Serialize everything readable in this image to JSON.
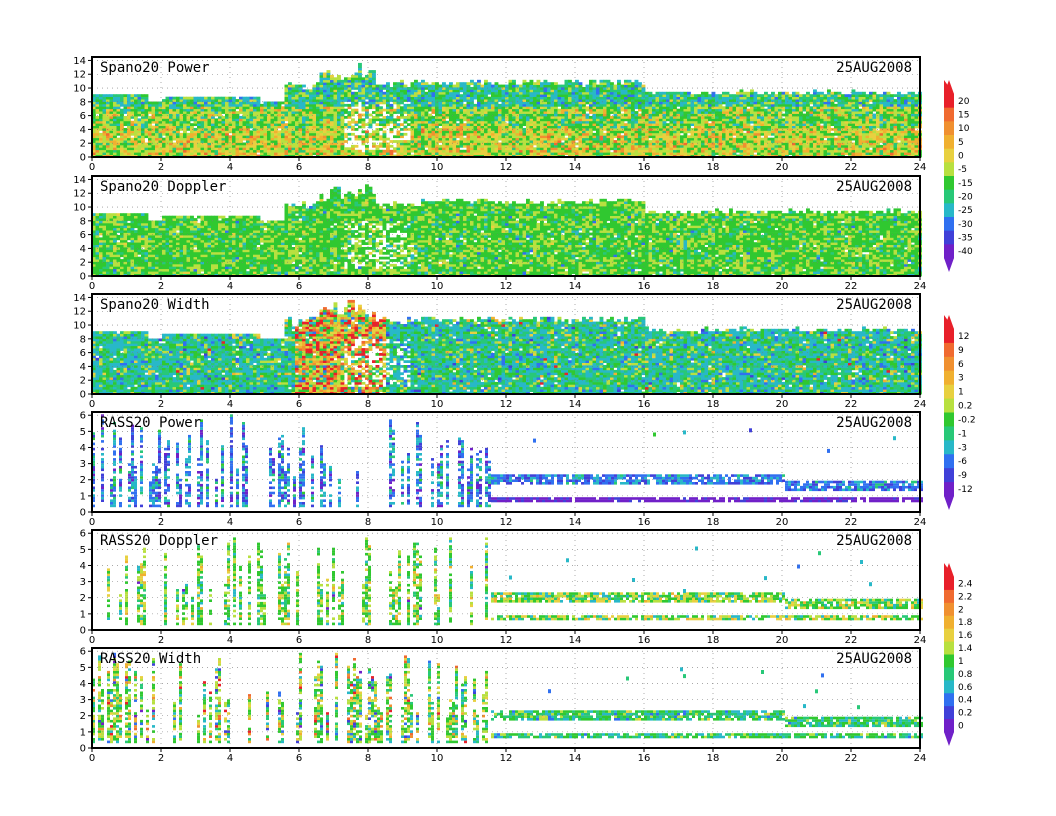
{
  "chart_data": [
    {
      "type": "heatmap",
      "title": "Spano20  Power",
      "date": "25AUG2008",
      "ylim": [
        0,
        14.5
      ],
      "yticks": [
        0,
        2,
        4,
        6,
        8,
        10,
        12,
        14
      ],
      "xticks": [
        0,
        2,
        4,
        6,
        8,
        10,
        12,
        14,
        16,
        18,
        20,
        22,
        24
      ],
      "colorbar": 0
    },
    {
      "type": "heatmap",
      "title": "Spano20  Doppler",
      "date": "25AUG2008",
      "ylim": [
        0,
        14.5
      ],
      "yticks": [
        0,
        2,
        4,
        6,
        8,
        10,
        12,
        14
      ],
      "xticks": [
        0,
        2,
        4,
        6,
        8,
        10,
        12,
        14,
        16,
        18,
        20,
        22,
        24
      ],
      "colorbar": 0
    },
    {
      "type": "heatmap",
      "title": "Spano20  Width",
      "date": "25AUG2008",
      "ylim": [
        0,
        14.5
      ],
      "yticks": [
        0,
        2,
        4,
        6,
        8,
        10,
        12,
        14
      ],
      "xticks": [
        0,
        2,
        4,
        6,
        8,
        10,
        12,
        14,
        16,
        18,
        20,
        22,
        24
      ],
      "colorbar": 1
    },
    {
      "type": "heatmap",
      "title": "RASS20  Power",
      "date": "25AUG2008",
      "ylim": [
        0,
        6.2
      ],
      "yticks": [
        0,
        1,
        2,
        3,
        4,
        5,
        6
      ],
      "xticks": [
        0,
        2,
        4,
        6,
        8,
        10,
        12,
        14,
        16,
        18,
        20,
        22,
        24
      ],
      "colorbar": 1
    },
    {
      "type": "heatmap",
      "title": "RASS20  Doppler",
      "date": "25AUG2008",
      "ylim": [
        0,
        6.2
      ],
      "yticks": [
        0,
        1,
        2,
        3,
        4,
        5,
        6
      ],
      "xticks": [
        0,
        2,
        4,
        6,
        8,
        10,
        12,
        14,
        16,
        18,
        20,
        22,
        24
      ],
      "colorbar": 2
    },
    {
      "type": "heatmap",
      "title": "RASS20  Width",
      "date": "25AUG2008",
      "ylim": [
        0,
        6.2
      ],
      "yticks": [
        0,
        1,
        2,
        3,
        4,
        5,
        6
      ],
      "xticks": [
        0,
        2,
        4,
        6,
        8,
        10,
        12,
        14,
        16,
        18,
        20,
        22,
        24
      ],
      "colorbar": 2
    }
  ],
  "colorbars": [
    {
      "labels": [
        "20",
        "15",
        "10",
        "5",
        "0",
        "-5",
        "-15",
        "-20",
        "-25",
        "-30",
        "-35",
        "-40"
      ],
      "colors": [
        "#e8202a",
        "#f06a30",
        "#f09030",
        "#f0b030",
        "#e8d040",
        "#b8e040",
        "#30c830",
        "#28c878",
        "#28b8c8",
        "#3070f0",
        "#4040d8",
        "#7020c8"
      ]
    },
    {
      "labels": [
        "12",
        "9",
        "6",
        "3",
        "1",
        "0.2",
        "-0.2",
        "-1",
        "-3",
        "-6",
        "-9",
        "-12"
      ],
      "colors": [
        "#e8202a",
        "#f06a30",
        "#f09030",
        "#f0b030",
        "#e8d040",
        "#b8e040",
        "#30c830",
        "#28c878",
        "#28b8c8",
        "#3070f0",
        "#4040d8",
        "#7020c8"
      ]
    },
    {
      "labels": [
        "2.4",
        "2.2",
        "2",
        "1.8",
        "1.6",
        "1.4",
        "1",
        "0.8",
        "0.6",
        "0.4",
        "0.2",
        "0"
      ],
      "colors": [
        "#e8202a",
        "#f06a30",
        "#f09030",
        "#f0b030",
        "#e8d040",
        "#b8e040",
        "#30c830",
        "#28c878",
        "#28b8c8",
        "#3070f0",
        "#4040d8",
        "#7020c8"
      ]
    }
  ]
}
